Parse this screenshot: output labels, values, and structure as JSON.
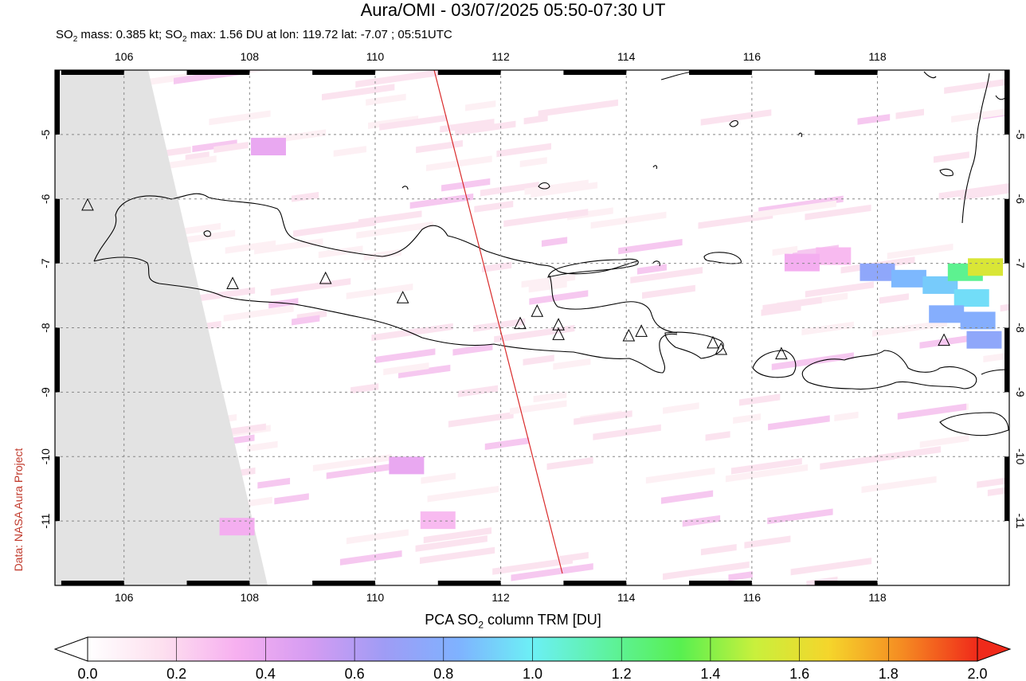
{
  "title": "Aura/OMI - 03/07/2025 05:50-07:30 UT",
  "subtitle": {
    "prefix": "SO",
    "sub": "2",
    "mid": " mass: 0.385 kt; SO",
    "sub2": "2",
    "rest": " max: 1.56 DU at lon: 119.72 lat: -7.07 ; 05:51UTC"
  },
  "credit": "Data: NASA Aura Project",
  "colorbar": {
    "title_prefix": "PCA SO",
    "title_sub": "2",
    "title_rest": " column TRM [DU]",
    "ticks": [
      "0.0",
      "0.2",
      "0.4",
      "0.6",
      "0.8",
      "1.0",
      "1.2",
      "1.4",
      "1.6",
      "1.8",
      "2.0"
    ],
    "colors": [
      "#ffffff",
      "#fde0ef",
      "#f7b0f0",
      "#d59cf2",
      "#9f9cf5",
      "#7fb2ff",
      "#6cf0f5",
      "#5ef2a0",
      "#58f050",
      "#c9f03c",
      "#f5d52b",
      "#f58a22",
      "#f02a1a"
    ]
  },
  "map": {
    "lon_ticks": [
      "106",
      "108",
      "110",
      "112",
      "114",
      "116",
      "118"
    ],
    "lat_ticks": [
      "-5",
      "-6",
      "-7",
      "-8",
      "-9",
      "-10",
      "-11"
    ],
    "lon_range": [
      104.9,
      120.1
    ],
    "lat_range": [
      -4.0,
      -12.0
    ],
    "volcanoes": [
      {
        "lon": 105.42,
        "lat": -6.1
      },
      {
        "lon": 107.73,
        "lat": -7.32
      },
      {
        "lon": 109.21,
        "lat": -7.24
      },
      {
        "lon": 110.44,
        "lat": -7.54
      },
      {
        "lon": 112.31,
        "lat": -7.94
      },
      {
        "lon": 112.58,
        "lat": -7.75
      },
      {
        "lon": 112.92,
        "lat": -7.96
      },
      {
        "lon": 112.92,
        "lat": -8.11
      },
      {
        "lon": 114.04,
        "lat": -8.13
      },
      {
        "lon": 114.24,
        "lat": -8.06
      },
      {
        "lon": 115.38,
        "lat": -8.24
      },
      {
        "lon": 115.51,
        "lat": -8.34
      },
      {
        "lon": 116.47,
        "lat": -8.41
      },
      {
        "lon": 119.06,
        "lat": -8.2
      }
    ],
    "so2_pixels": [
      {
        "lon": 118.0,
        "lat": -7.15,
        "value": 0.75
      },
      {
        "lon": 118.5,
        "lat": -7.25,
        "value": 0.85
      },
      {
        "lon": 119.0,
        "lat": -7.35,
        "value": 0.9
      },
      {
        "lon": 119.4,
        "lat": -7.15,
        "value": 1.2
      },
      {
        "lon": 119.72,
        "lat": -7.07,
        "value": 1.56
      },
      {
        "lon": 119.5,
        "lat": -7.55,
        "value": 0.95
      },
      {
        "lon": 119.1,
        "lat": -7.8,
        "value": 0.8
      },
      {
        "lon": 119.6,
        "lat": -7.9,
        "value": 0.8
      },
      {
        "lon": 119.7,
        "lat": -8.2,
        "value": 0.75
      },
      {
        "lon": 117.3,
        "lat": -6.9,
        "value": 0.3
      },
      {
        "lon": 116.8,
        "lat": -7.0,
        "value": 0.35
      },
      {
        "lon": 108.3,
        "lat": -5.2,
        "value": 0.4
      },
      {
        "lon": 110.5,
        "lat": -10.15,
        "value": 0.4
      },
      {
        "lon": 111.0,
        "lat": -11.0,
        "value": 0.3
      },
      {
        "lon": 107.8,
        "lat": -11.1,
        "value": 0.35
      }
    ]
  }
}
